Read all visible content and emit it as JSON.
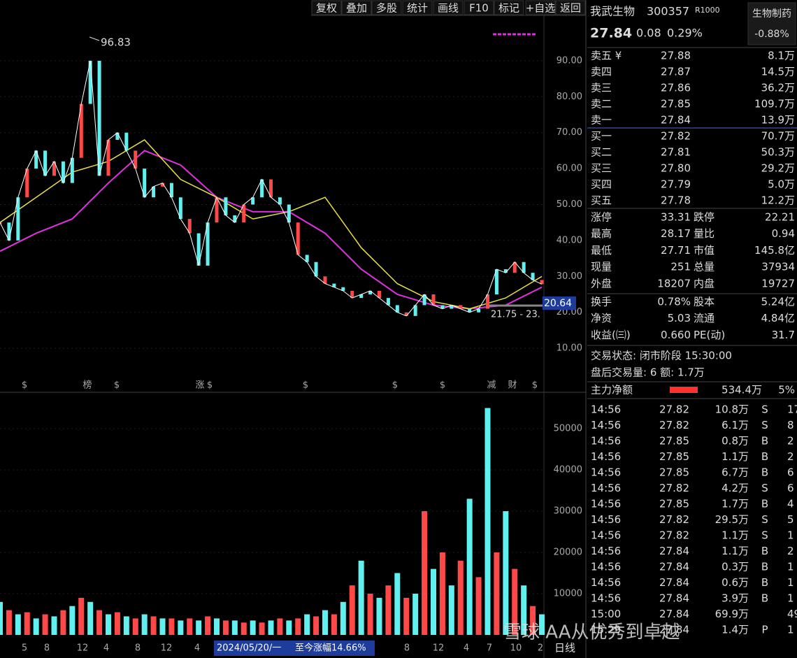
{
  "toolbar": [
    "复权",
    "叠加",
    "多股",
    "统计",
    "画线",
    "F10",
    "标记",
    "+自选",
    "返回"
  ],
  "kline": {
    "price_ylim": [
      0,
      100
    ],
    "price_ticks": [
      {
        "value": 10,
        "label": "10.00"
      },
      {
        "value": 20,
        "label": "20.00"
      },
      {
        "value": 30,
        "label": "30.00"
      },
      {
        "value": 40,
        "label": "40.00"
      },
      {
        "value": 50,
        "label": "50.00"
      },
      {
        "value": 60,
        "label": "60.00"
      },
      {
        "value": 70,
        "label": "70.00"
      },
      {
        "value": 80,
        "label": "80.00"
      },
      {
        "value": 90,
        "label": "90.00"
      }
    ],
    "price": [
      45,
      40,
      52,
      60,
      65,
      58,
      62,
      56,
      63,
      78,
      90,
      58,
      68,
      70,
      65,
      60,
      52,
      55,
      56,
      52,
      46,
      42,
      33,
      45,
      52,
      47,
      45,
      50,
      52,
      57,
      52,
      50,
      45,
      36,
      34,
      30,
      28,
      27,
      26,
      24,
      25,
      26,
      24,
      22,
      20,
      19,
      22,
      25,
      22,
      21,
      22,
      21,
      20,
      21,
      25,
      32,
      31,
      34,
      31,
      29,
      27.84
    ],
    "ma_yellow": [
      45,
      52,
      59,
      62,
      68,
      57,
      52,
      46,
      48,
      52,
      38,
      28,
      23,
      21,
      24,
      30
    ],
    "ma_magenta": [
      37,
      42,
      46,
      56,
      65,
      61,
      52,
      48,
      48,
      42,
      32,
      25,
      22,
      21,
      22,
      27
    ],
    "peak_label": "96.83",
    "ma_label": "20.64",
    "range_label": "21.75 - 23.",
    "events": [
      "$",
      "榜",
      "$",
      "涨",
      "$",
      "$",
      "$",
      "$",
      "减",
      "财",
      "$"
    ],
    "volume_ylim": [
      0,
      60000
    ],
    "volume_ticks": [
      10000,
      20000,
      30000,
      40000,
      50000
    ],
    "volume": [
      8000,
      6000,
      5000,
      5500,
      4000,
      5000,
      4500,
      6000,
      7000,
      9000,
      8000,
      6000,
      5000,
      5500,
      4500,
      4000,
      5000,
      4500,
      4000,
      4000,
      3500,
      4000,
      3500,
      4500,
      4000,
      3500,
      3500,
      3000,
      3500,
      3000,
      3500,
      4000,
      3500,
      4000,
      5000,
      4500,
      6000,
      5000,
      8000,
      12000,
      18000,
      10000,
      9000,
      12000,
      15000,
      9000,
      10000,
      30000,
      16000,
      20000,
      12000,
      18000,
      33000,
      14000,
      55000,
      20000,
      30000,
      16000,
      12000,
      7000,
      5000
    ],
    "x_labels": [
      "5",
      "8",
      "12",
      "4",
      "8",
      "12",
      "4",
      "8",
      "12",
      "4",
      "7",
      "10",
      "2"
    ],
    "date_label": "2024/05/20/一",
    "gain_label": "至今涨幅14.66%",
    "period": "日线"
  },
  "quote": {
    "name": "我武生物",
    "code": "300357",
    "badge": "R1000",
    "sector": "生物制药",
    "sector_change": "-0.88%",
    "price": "27.84",
    "change": "0.08",
    "change_pct": "0.29%"
  },
  "order_book": {
    "sell": [
      [
        "卖五 ¥",
        "27.88",
        "8.1万"
      ],
      [
        "卖四",
        "27.87",
        "14.5万"
      ],
      [
        "卖三",
        "27.86",
        "36.2万"
      ],
      [
        "卖二",
        "27.85",
        "109.7万"
      ],
      [
        "卖一",
        "27.84",
        "13.9万"
      ]
    ],
    "buy": [
      [
        "买一",
        "27.82",
        "70.7万"
      ],
      [
        "买二",
        "27.81",
        "50.3万"
      ],
      [
        "买三",
        "27.80",
        "29.2万"
      ],
      [
        "买四",
        "27.79",
        "5.0万"
      ],
      [
        "买五",
        "27.78",
        "12.2万"
      ]
    ]
  },
  "stats": [
    [
      "涨停",
      "33.31",
      "跌停",
      "22.21"
    ],
    [
      "最高",
      "28.17",
      "量比",
      "0.94"
    ],
    [
      "最低",
      "27.71",
      "市值",
      "145.8亿"
    ],
    [
      "现量",
      "251",
      "总量",
      "37934"
    ],
    [
      "外盘",
      "18207",
      "内盘",
      "19727"
    ]
  ],
  "fundamentals": [
    [
      "换手",
      "0.78%",
      "股本",
      "5.24亿"
    ],
    [
      "净资",
      "5.03",
      "流通",
      "4.84亿"
    ],
    [
      "收益(㈢)",
      "0.660",
      "PE(动)",
      "31.7"
    ]
  ],
  "status": "交易状态: 闭市阶段 15:30:00",
  "after_hours": "盘后交易量: 6  额: 1.7万",
  "main_force": {
    "label": "主力净额",
    "value": "534.4万",
    "pct": "5%"
  },
  "trades": [
    {
      "time": "14:56",
      "price": "27.82",
      "vol": "10.8万",
      "dir": "S",
      "count": "17"
    },
    {
      "time": "14:56",
      "price": "27.82",
      "vol": "6.1万",
      "dir": "S",
      "count": "8"
    },
    {
      "time": "14:56",
      "price": "27.85",
      "vol": "0.8万",
      "dir": "B",
      "count": "2"
    },
    {
      "time": "14:56",
      "price": "27.85",
      "vol": "1.1万",
      "dir": "B",
      "count": "2"
    },
    {
      "time": "14:56",
      "price": "27.85",
      "vol": "6.7万",
      "dir": "B",
      "count": "6"
    },
    {
      "time": "14:56",
      "price": "27.82",
      "vol": "4.2万",
      "dir": "S",
      "count": "6"
    },
    {
      "time": "14:56",
      "price": "27.85",
      "vol": "1.7万",
      "dir": "B",
      "count": "4"
    },
    {
      "time": "14:56",
      "price": "27.82",
      "vol": "29.5万",
      "dir": "S",
      "count": "5"
    },
    {
      "time": "14:56",
      "price": "27.82",
      "vol": "1.1万",
      "dir": "S",
      "count": "1"
    },
    {
      "time": "14:56",
      "price": "27.84",
      "vol": "1.1万",
      "dir": "B",
      "count": "2"
    },
    {
      "time": "14:56",
      "price": "27.84",
      "vol": "0.3万",
      "dir": "B",
      "count": "1"
    },
    {
      "time": "14:56",
      "price": "27.84",
      "vol": "0.6万",
      "dir": "B",
      "count": "1"
    },
    {
      "time": "14:56",
      "price": "27.84",
      "vol": "3.9万",
      "dir": "B",
      "count": "1"
    },
    {
      "time": "15:00",
      "price": "27.84",
      "vol": "69.9万",
      "count": "49"
    },
    {
      "time": "15:29",
      "price": "27.84",
      "vol": "1.4万",
      "dir": "P",
      "count": "1"
    }
  ],
  "watermark": "雪球  AA从优秀到卓越"
}
